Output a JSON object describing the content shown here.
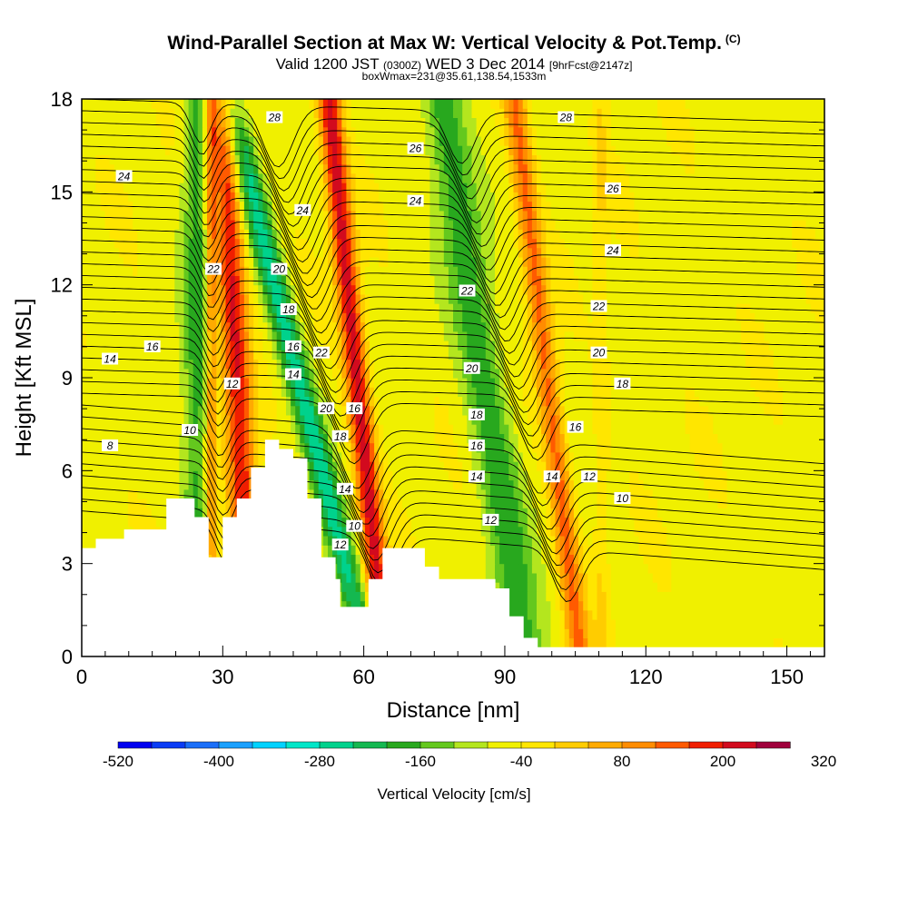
{
  "header": {
    "title": "Wind-Parallel Section at Max W: Vertical Velocity & Pot.Temp.",
    "title_tag": "(C)",
    "subtitle_main": "Valid 1200 JST",
    "subtitle_utc": "(0300Z)",
    "subtitle_date": "WED 3 Dec 2014",
    "subtitle_fcst": "[9hrFcst@2147z]",
    "subtitle2": "boxWmax=231@35.61,138.54,1533m"
  },
  "chart_data": {
    "type": "heatmap",
    "xlabel": "Distance [nm]",
    "ylabel": "Height [Kft MSL]",
    "xlim": [
      0,
      158
    ],
    "ylim": [
      0,
      18
    ],
    "x_ticks": [
      0,
      30,
      60,
      90,
      120,
      150
    ],
    "y_ticks": [
      0,
      3,
      6,
      9,
      12,
      15,
      18
    ],
    "colorbar": {
      "label": "Vertical Velocity [cm/s]",
      "tick_labels": [
        "-520",
        "-400",
        "-280",
        "-160",
        "-40",
        "80",
        "200",
        "320"
      ],
      "bins": 20,
      "colors": [
        "#0000f0",
        "#0a3cf5",
        "#1a6ef8",
        "#1aa0ff",
        "#00d2ff",
        "#00e6c8",
        "#00d28c",
        "#14b850",
        "#28a81e",
        "#64c81e",
        "#b4e61e",
        "#f0f000",
        "#ffe600",
        "#ffcc00",
        "#ffaa00",
        "#ff8c00",
        "#ff5a00",
        "#f01e00",
        "#d20a1e",
        "#a0003c"
      ]
    },
    "vertical_velocity_bands": [
      {
        "x": 24.5,
        "x_slope": 0.0,
        "width": 3.0,
        "w": -150
      },
      {
        "x": 27.5,
        "x_slope": 0.0,
        "width": 1.2,
        "w": 200
      },
      {
        "x": 33.0,
        "x_slope": -0.15,
        "width": 3.0,
        "w": 300
      },
      {
        "x": 46.0,
        "x_slope": -0.75,
        "width": 3.0,
        "w": -240
      },
      {
        "x": 58.5,
        "x_slope": -0.3,
        "width": 2.5,
        "w": 330
      },
      {
        "x": 85.5,
        "x_slope": -0.45,
        "width": 4.5,
        "w": -160
      },
      {
        "x": 99.0,
        "x_slope": -0.35,
        "width": 2.5,
        "w": 220
      },
      {
        "x": 110.5,
        "x_slope": 0.0,
        "width": 1.5,
        "w": 60
      }
    ],
    "background_w": 40,
    "theta_contours": {
      "labels": [
        {
          "text": "28",
          "x": 41,
          "y": 17.4
        },
        {
          "text": "26",
          "x": 71,
          "y": 16.4
        },
        {
          "text": "24",
          "x": 9,
          "y": 15.5
        },
        {
          "text": "24",
          "x": 47,
          "y": 14.4
        },
        {
          "text": "24",
          "x": 71,
          "y": 14.7
        },
        {
          "text": "26",
          "x": 113,
          "y": 15.1
        },
        {
          "text": "28",
          "x": 103,
          "y": 17.4
        },
        {
          "text": "22",
          "x": 28,
          "y": 12.5
        },
        {
          "text": "20",
          "x": 42,
          "y": 12.5
        },
        {
          "text": "22",
          "x": 82,
          "y": 11.8
        },
        {
          "text": "24",
          "x": 113,
          "y": 13.1
        },
        {
          "text": "18",
          "x": 44,
          "y": 11.2
        },
        {
          "text": "22",
          "x": 110,
          "y": 11.3
        },
        {
          "text": "16",
          "x": 15,
          "y": 10.0
        },
        {
          "text": "16",
          "x": 45,
          "y": 10.0
        },
        {
          "text": "22",
          "x": 51,
          "y": 9.8
        },
        {
          "text": "20",
          "x": 110,
          "y": 9.8
        },
        {
          "text": "14",
          "x": 6,
          "y": 9.6
        },
        {
          "text": "14",
          "x": 45,
          "y": 9.1
        },
        {
          "text": "20",
          "x": 83,
          "y": 9.3
        },
        {
          "text": "12",
          "x": 32,
          "y": 8.8
        },
        {
          "text": "18",
          "x": 115,
          "y": 8.8
        },
        {
          "text": "20",
          "x": 52,
          "y": 8.0
        },
        {
          "text": "16",
          "x": 58,
          "y": 8.0
        },
        {
          "text": "18",
          "x": 84,
          "y": 7.8
        },
        {
          "text": "10",
          "x": 23,
          "y": 7.3
        },
        {
          "text": "16",
          "x": 105,
          "y": 7.4
        },
        {
          "text": "18",
          "x": 55,
          "y": 7.1
        },
        {
          "text": "8",
          "x": 6,
          "y": 6.8
        },
        {
          "text": "16",
          "x": 84,
          "y": 6.8
        },
        {
          "text": "14",
          "x": 84,
          "y": 5.8
        },
        {
          "text": "14",
          "x": 100,
          "y": 5.8
        },
        {
          "text": "12",
          "x": 108,
          "y": 5.8
        },
        {
          "text": "14",
          "x": 56,
          "y": 5.4
        },
        {
          "text": "10",
          "x": 115,
          "y": 5.1
        },
        {
          "text": "12",
          "x": 87,
          "y": 4.4
        },
        {
          "text": "10",
          "x": 58,
          "y": 4.2
        },
        {
          "text": "12",
          "x": 55,
          "y": 3.6
        }
      ]
    },
    "terrain": [
      [
        0,
        3.5
      ],
      [
        3,
        3.5
      ],
      [
        3,
        3.8
      ],
      [
        9,
        3.8
      ],
      [
        9,
        4.1
      ],
      [
        18,
        4.1
      ],
      [
        18,
        5.1
      ],
      [
        24,
        5.1
      ],
      [
        24,
        4.5
      ],
      [
        27,
        4.5
      ],
      [
        27,
        3.2
      ],
      [
        30,
        3.2
      ],
      [
        30,
        4.5
      ],
      [
        33,
        4.5
      ],
      [
        33,
        5.1
      ],
      [
        36,
        5.1
      ],
      [
        36,
        6.1
      ],
      [
        39,
        6.1
      ],
      [
        39,
        7.0
      ],
      [
        42,
        7.0
      ],
      [
        42,
        6.7
      ],
      [
        45,
        6.7
      ],
      [
        45,
        6.4
      ],
      [
        48,
        6.4
      ],
      [
        48,
        5.1
      ],
      [
        51,
        5.1
      ],
      [
        51,
        3.2
      ],
      [
        54,
        3.2
      ],
      [
        54,
        2.5
      ],
      [
        55,
        2.5
      ],
      [
        55,
        1.6
      ],
      [
        61,
        1.6
      ],
      [
        61,
        2.5
      ],
      [
        64,
        2.5
      ],
      [
        64,
        3.5
      ],
      [
        73,
        3.5
      ],
      [
        73,
        2.9
      ],
      [
        76,
        2.9
      ],
      [
        76,
        2.5
      ],
      [
        88,
        2.5
      ],
      [
        88,
        2.2
      ],
      [
        91,
        2.2
      ],
      [
        91,
        1.3
      ],
      [
        94,
        1.3
      ],
      [
        94,
        0.6
      ],
      [
        97,
        0.6
      ],
      [
        97,
        0.3
      ],
      [
        158,
        0.3
      ]
    ]
  }
}
